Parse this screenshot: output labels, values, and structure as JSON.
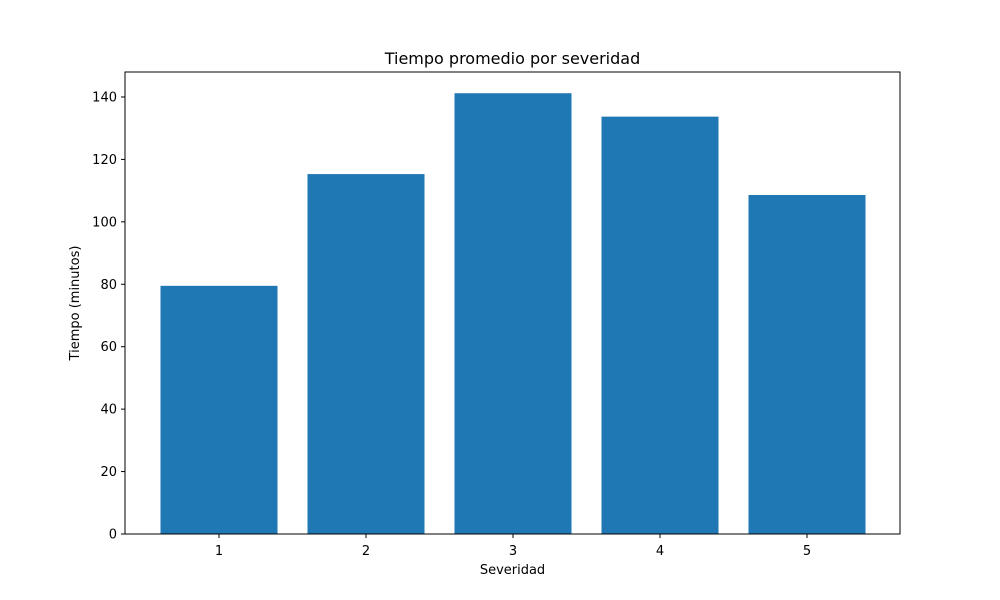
{
  "chart_data": {
    "type": "bar",
    "title": "Tiempo promedio por severidad",
    "xlabel": "Severidad",
    "ylabel": "Tiempo (minutos)",
    "categories": [
      "1",
      "2",
      "3",
      "4",
      "5"
    ],
    "values": [
      79.5,
      115.3,
      141.2,
      133.7,
      108.6
    ],
    "ylim": [
      0,
      148
    ],
    "yticks": [
      0,
      20,
      40,
      60,
      80,
      100,
      120,
      140
    ],
    "grid": false,
    "legend": "none",
    "bar_color": "#1f77b4"
  }
}
